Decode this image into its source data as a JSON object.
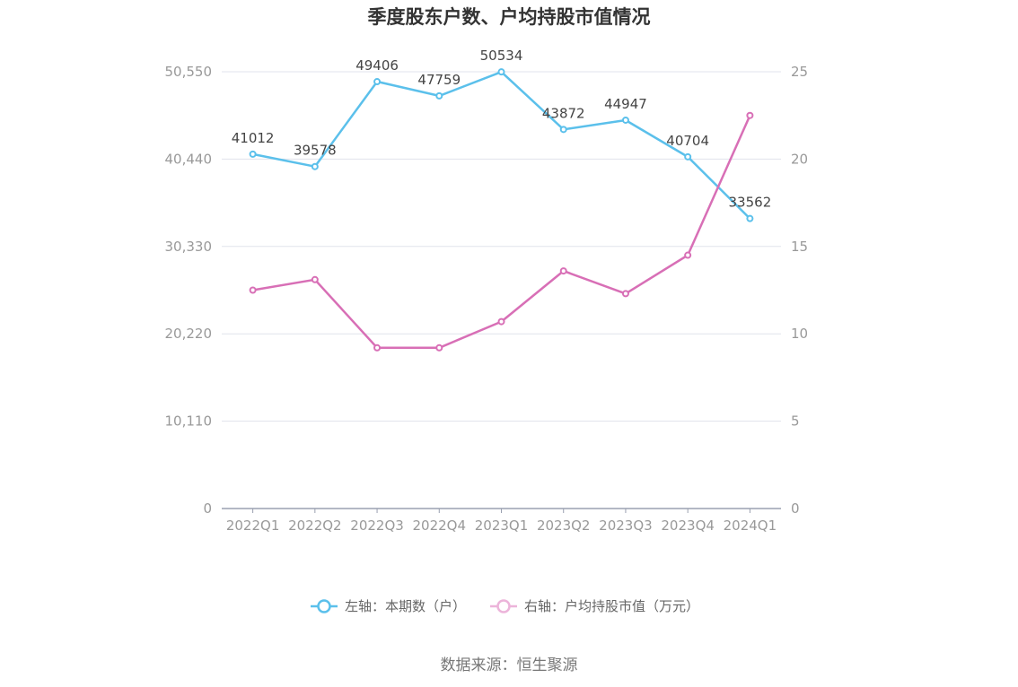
{
  "chart_data": {
    "type": "line",
    "title": "季度股东户数、户均持股市值情况",
    "categories": [
      "2022Q1",
      "2022Q2",
      "2022Q3",
      "2022Q4",
      "2023Q1",
      "2023Q2",
      "2023Q3",
      "2023Q4",
      "2024Q1"
    ],
    "left_axis": {
      "ticks": [
        "0",
        "10,110",
        "20,220",
        "30,330",
        "40,440",
        "50,550"
      ],
      "ylim": [
        0,
        50550
      ]
    },
    "right_axis": {
      "ticks": [
        "0",
        "5",
        "10",
        "15",
        "20",
        "25"
      ],
      "ylim": [
        0,
        25
      ]
    },
    "series": [
      {
        "name": "左轴：本期数（户）",
        "axis": "left",
        "color": "#5bc0eb",
        "values": [
          41012,
          39578,
          49406,
          47759,
          50534,
          43872,
          44947,
          40704,
          33562
        ],
        "labels": [
          "41012",
          "39578",
          "49406",
          "47759",
          "50534",
          "43872",
          "44947",
          "40704",
          "33562"
        ]
      },
      {
        "name": "右轴：户均持股市值（万元）",
        "axis": "right",
        "color": "#d86fb6",
        "values": [
          12.5,
          13.1,
          9.2,
          9.2,
          10.7,
          13.6,
          12.3,
          14.5,
          22.5
        ]
      }
    ],
    "grid": true,
    "legend": "bottom-center"
  },
  "footer": {
    "source": "数据来源：恒生聚源"
  }
}
